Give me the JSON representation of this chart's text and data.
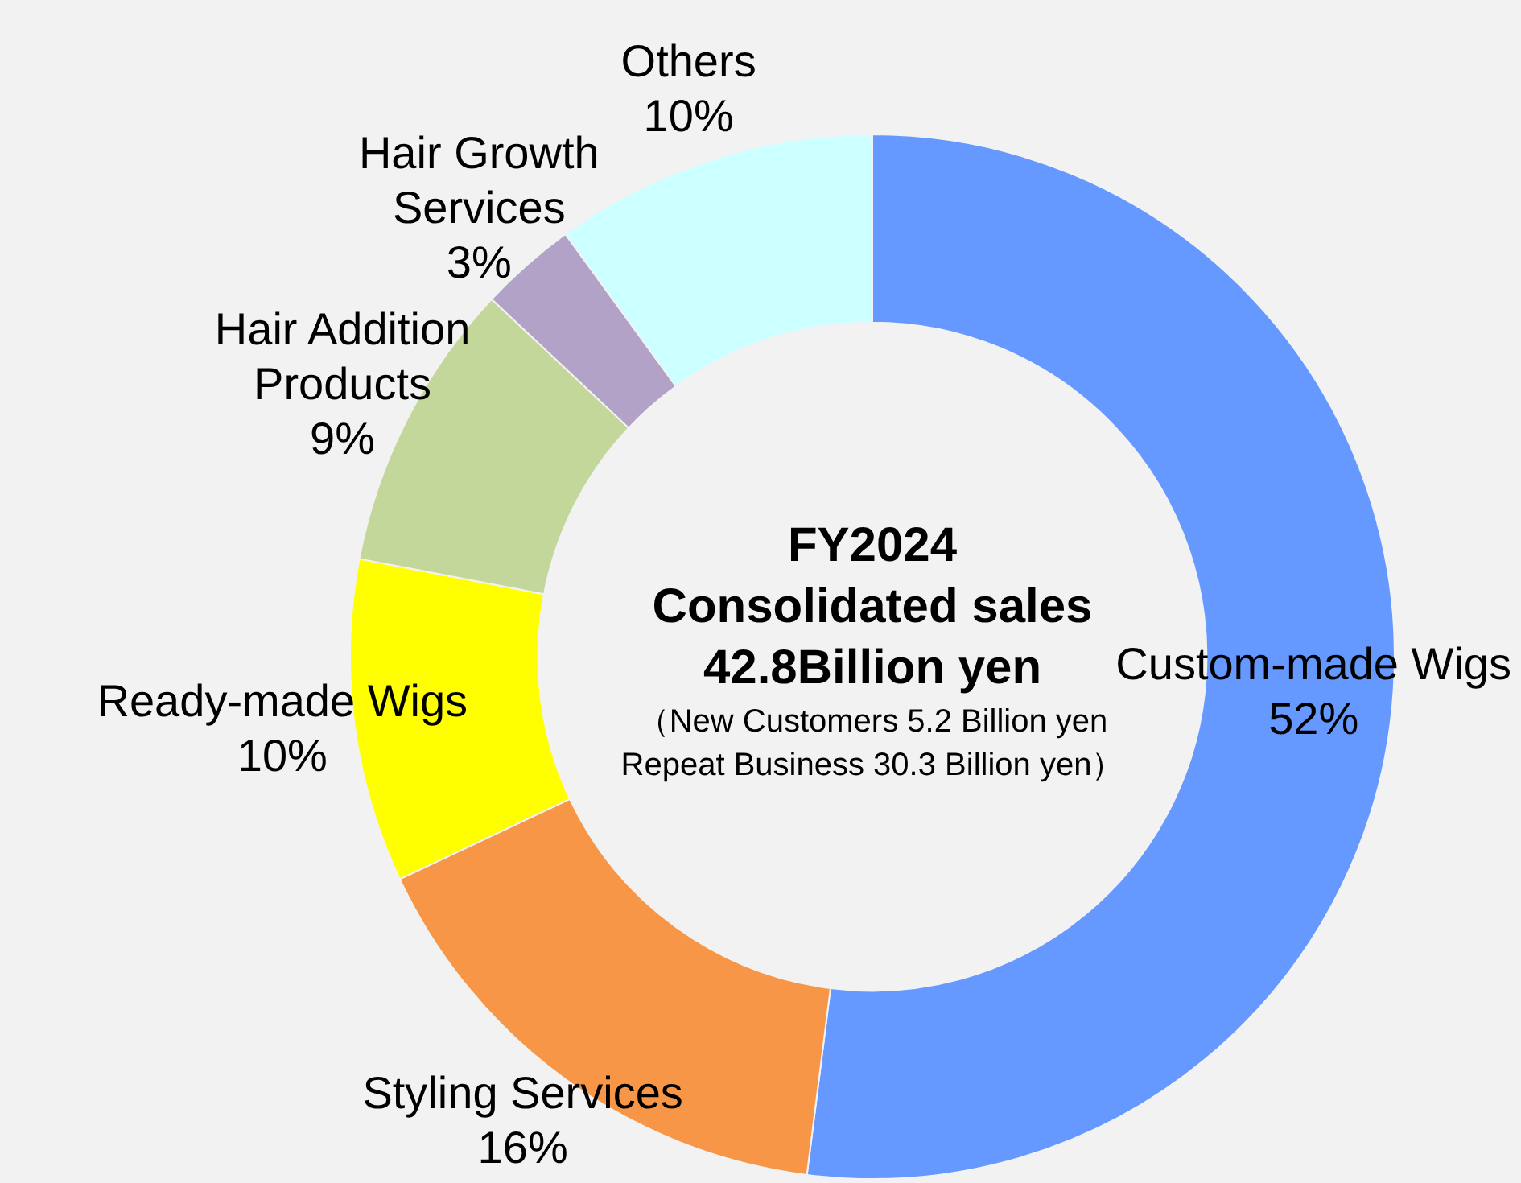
{
  "chart_data": {
    "type": "donut",
    "title": "FY2024\nConsolidated sales\n42.8Billion yen",
    "subtitle": "（New Customers 5.2 Billion yen\nRepeat Business 30.3 Billion yen）",
    "categories": [
      "Custom-made Wigs",
      "Styling Services",
      "Ready-made Wigs",
      "Hair Addition Products",
      "Hair Growth Services",
      "Others"
    ],
    "values": [
      52,
      16,
      10,
      9,
      3,
      10
    ],
    "colors": [
      "#6699ff",
      "#f79646",
      "#ffff00",
      "#c4d79b",
      "#b2a2c7",
      "#ccffff"
    ],
    "value_labels": [
      "52%",
      "16%",
      "10%",
      "9%",
      "3%",
      "10%"
    ],
    "legend": false
  }
}
